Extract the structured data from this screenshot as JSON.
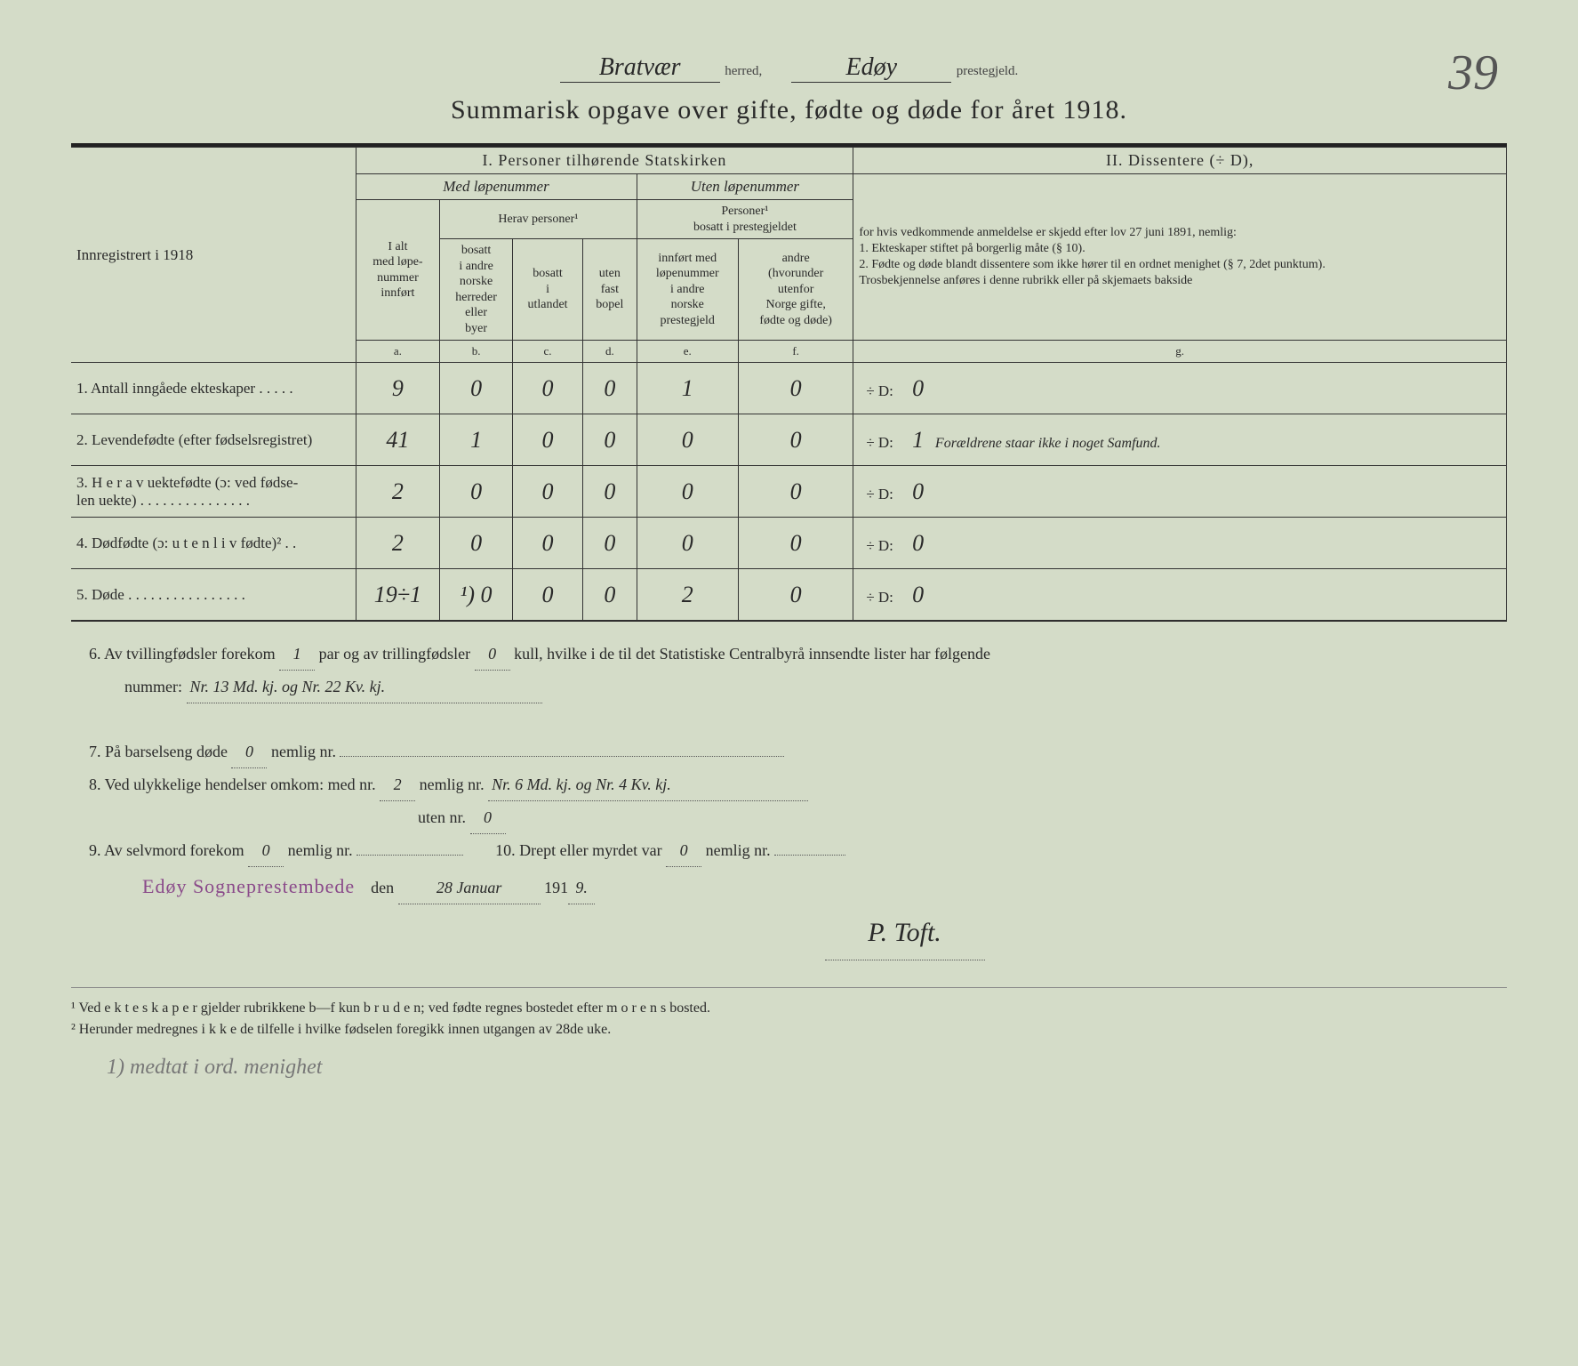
{
  "header": {
    "herred": "Bratvær",
    "herred_label": "herred,",
    "prestegjeld": "Edøy",
    "prestegjeld_label": "prestegjeld.",
    "page_number": "39",
    "title": "Summarisk opgave over gifte, fødte og døde for året 1918."
  },
  "columns": {
    "innregistrert": "Innregistrert i 1918",
    "section1": "I.  Personer tilhørende Statskirken",
    "med_lope": "Med løpenummer",
    "uten_lope": "Uten løpenummer",
    "i_alt": "I alt\nmed løpe-\nnummer\ninnført",
    "herav": "Herav personer¹",
    "bosatt_andre": "bosatt\ni andre\nnorske\nherreder\neller\nbyer",
    "bosatt_utlandet": "bosatt\ni\nutlandet",
    "uten_fast": "uten\nfast\nbopel",
    "personer_bosatt": "Personer¹\nbosatt i prestegjeldet",
    "innfort_med": "innført med\nløpenummer\ni andre\nnorske\nprestegjeld",
    "andre": "andre\n(hvorunder\nutenfor\nNorge gifte,\nfødte og døde)",
    "section2": "II.  Dissentere (÷ D),",
    "dissenter_text": "for hvis vedkommende anmeldelse er skjedd efter lov 27 juni 1891, nemlig:\n1. Ekteskaper stiftet på borgerlig måte (§ 10).\n2. Fødte og døde blandt dissentere som ikke hører til en ordnet menighet (§ 7, 2det punktum).\nTrosbekjennelse anføres i denne rubrikk eller på skjemaets bakside",
    "letters": {
      "a": "a.",
      "b": "b.",
      "c": "c.",
      "d": "d.",
      "e": "e.",
      "f": "f.",
      "g": "g."
    }
  },
  "rows": [
    {
      "label": "1. Antall inngåede ekteskaper . . . . .",
      "a": "9",
      "b": "0",
      "c": "0",
      "d": "0",
      "e": "1",
      "f": "0",
      "g_prefix": "÷ D:",
      "g": "0",
      "g_note": ""
    },
    {
      "label": "2. Levendefødte (efter fødselsregistret)",
      "a": "41",
      "b": "1",
      "c": "0",
      "d": "0",
      "e": "0",
      "f": "0",
      "g_prefix": "÷ D:",
      "g": "1",
      "g_note": "Forældrene staar ikke i noget Samfund."
    },
    {
      "label": "3. H e r a v uektefødte (ɔ: ved fødse-\nlen uekte) . . . . . . . . . . . . . . .",
      "a": "2",
      "b": "0",
      "c": "0",
      "d": "0",
      "e": "0",
      "f": "0",
      "g_prefix": "÷ D:",
      "g": "0",
      "g_note": ""
    },
    {
      "label": "4. Dødfødte (ɔ: u t e n  l i v  fødte)² . .",
      "a": "2",
      "b": "0",
      "c": "0",
      "d": "0",
      "e": "0",
      "f": "0",
      "g_prefix": "÷ D:",
      "g": "0",
      "g_note": ""
    },
    {
      "label": "5. Døde . . . . . . . . . . . . . . . .",
      "a": "19÷1",
      "b": "¹) 0",
      "c": "0",
      "d": "0",
      "e": "2",
      "f": "0",
      "g_prefix": "÷ D:",
      "g": "0",
      "g_note": ""
    }
  ],
  "below": {
    "line6a": "6.  Av tvillingfødsler forekom",
    "twin": "1",
    "line6b": "par og av trillingfødsler",
    "triplet": "0",
    "line6c": "kull, hvilke i de til det Statistiske Centralbyrå innsendte lister har følgende",
    "line6d": "nummer:",
    "line6_vals": "Nr. 13 Md. kj. og Nr. 22 Kv. kj.",
    "line7a": "7.  På barselseng døde",
    "l7": "0",
    "line7b": "nemlig nr.",
    "line8a": "8.  Ved ulykkelige hendelser omkom:  med nr.",
    "l8a": "2",
    "line8b": "nemlig nr.",
    "l8_vals": "Nr. 6 Md. kj. og Nr. 4 Kv. kj.",
    "line8c": "uten nr.",
    "l8c": "0",
    "line9a": "9.  Av selvmord forekom",
    "l9": "0",
    "line9b": "nemlig nr.",
    "line10a": "10.  Drept eller myrdet var",
    "l10": "0",
    "line10b": "nemlig nr.",
    "stamp": "Edøy Sogneprestembede",
    "den": "den",
    "date": "28 Januar",
    "year_prefix": "191",
    "year": "9.",
    "sign": "P. Toft."
  },
  "footnotes": {
    "f1": "¹  Ved e k t e s k a p e r gjelder rubrikkene b—f kun b r u d e n; ved fødte regnes bostedet efter m o r e n s bosted.",
    "f2": "²  Herunder medregnes i k k e de tilfelle i hvilke fødselen foregikk innen utgangen av 28de uke.",
    "pencil": "1) medtat i ord. menighet"
  }
}
